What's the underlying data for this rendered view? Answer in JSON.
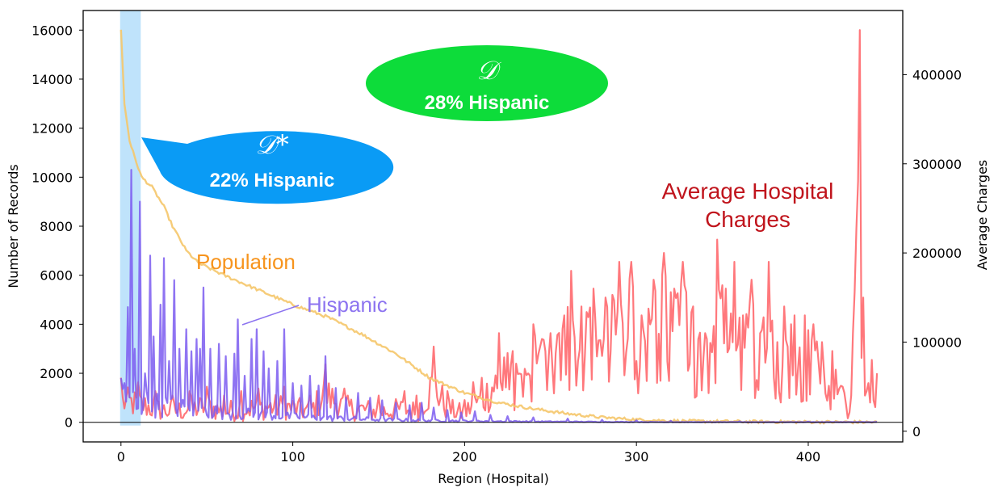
{
  "chart_data": {
    "type": "line",
    "xlabel": "Region (Hospital)",
    "ylabel": "Number of Records",
    "y2label": "Average Charges",
    "xlim": [
      -22,
      455
    ],
    "ylim": [
      -800,
      16800
    ],
    "y2lim": [
      -12000,
      472000
    ],
    "xticks": [
      "0",
      "100",
      "200",
      "300",
      "400"
    ],
    "yticks": [
      "0",
      "2000",
      "4000",
      "6000",
      "8000",
      "10000",
      "12000",
      "14000",
      "16000"
    ],
    "y2ticks": [
      "0",
      "100000",
      "200000",
      "300000",
      "400000"
    ],
    "n_regions": 440,
    "highlight_span": [
      -0.5,
      11.5
    ],
    "colors": {
      "population": "#f5c66a",
      "hispanic": "#7b5cf0",
      "charges": "#ff5a5f",
      "highlight": "#bfe3fb",
      "bubble_small": "#0a9bf5",
      "bubble_large": "#0ddc3a",
      "population_label": "#f7941d",
      "hispanic_label": "#8c73f0",
      "charges_label": "#c0141c"
    },
    "series": [
      {
        "name": "Population",
        "axis": "left",
        "points": [
          [
            0,
            16000
          ],
          [
            2,
            13000
          ],
          [
            5,
            11500
          ],
          [
            8,
            10800
          ],
          [
            12,
            10000
          ],
          [
            18,
            9600
          ],
          [
            25,
            8800
          ],
          [
            30,
            8000
          ],
          [
            38,
            7000
          ],
          [
            45,
            6500
          ],
          [
            60,
            6000
          ],
          [
            80,
            5400
          ],
          [
            100,
            4800
          ],
          [
            120,
            4300
          ],
          [
            140,
            3600
          ],
          [
            160,
            2800
          ],
          [
            180,
            1800
          ],
          [
            200,
            1200
          ],
          [
            220,
            800
          ],
          [
            240,
            550
          ],
          [
            260,
            350
          ],
          [
            280,
            200
          ],
          [
            300,
            110
          ],
          [
            320,
            60
          ],
          [
            340,
            40
          ],
          [
            380,
            20
          ],
          [
            420,
            10
          ],
          [
            440,
            5
          ]
        ]
      },
      {
        "name": "Hispanic",
        "axis": "left",
        "peaks": [
          [
            0,
            1800
          ],
          [
            2,
            1600
          ],
          [
            4,
            4700
          ],
          [
            6,
            10300
          ],
          [
            8,
            3000
          ],
          [
            11,
            9000
          ],
          [
            14,
            2000
          ],
          [
            17,
            6800
          ],
          [
            19,
            3500
          ],
          [
            23,
            4800
          ],
          [
            25,
            6700
          ],
          [
            28,
            2500
          ],
          [
            31,
            5800
          ],
          [
            34,
            3000
          ],
          [
            38,
            3800
          ],
          [
            41,
            2900
          ],
          [
            44,
            3400
          ],
          [
            46,
            3000
          ],
          [
            48,
            5500
          ],
          [
            52,
            3000
          ],
          [
            57,
            3200
          ],
          [
            61,
            2700
          ],
          [
            66,
            2800
          ],
          [
            68,
            4200
          ],
          [
            72,
            1900
          ],
          [
            76,
            3400
          ],
          [
            79,
            3800
          ],
          [
            83,
            2900
          ],
          [
            86,
            2200
          ],
          [
            91,
            2500
          ],
          [
            95,
            3800
          ],
          [
            100,
            1600
          ],
          [
            105,
            1500
          ],
          [
            110,
            1900
          ],
          [
            115,
            1500
          ],
          [
            119,
            2700
          ],
          [
            125,
            1400
          ],
          [
            131,
            1000
          ],
          [
            138,
            1200
          ],
          [
            145,
            1000
          ],
          [
            152,
            900
          ],
          [
            160,
            800
          ],
          [
            168,
            700
          ],
          [
            175,
            800
          ],
          [
            182,
            600
          ],
          [
            190,
            500
          ],
          [
            198,
            400
          ],
          [
            206,
            450
          ],
          [
            215,
            300
          ],
          [
            225,
            250
          ],
          [
            240,
            200
          ],
          [
            260,
            150
          ],
          [
            280,
            100
          ],
          [
            300,
            80
          ],
          [
            320,
            60
          ],
          [
            360,
            40
          ],
          [
            400,
            30
          ],
          [
            440,
            20
          ]
        ],
        "baseline_decay": 1200
      },
      {
        "name": "Average Hospital Charges",
        "axis": "right",
        "peaks": [
          [
            0,
            60000
          ],
          [
            10,
            55000
          ],
          [
            20,
            45000
          ],
          [
            30,
            40000
          ],
          [
            40,
            45000
          ],
          [
            50,
            50000
          ],
          [
            60,
            40000
          ],
          [
            70,
            45000
          ],
          [
            80,
            48000
          ],
          [
            95,
            50000
          ],
          [
            110,
            40000
          ],
          [
            119,
            75000
          ],
          [
            130,
            48000
          ],
          [
            150,
            40000
          ],
          [
            165,
            45000
          ],
          [
            172,
            40000
          ],
          [
            182,
            95000
          ],
          [
            190,
            45000
          ],
          [
            200,
            35000
          ],
          [
            205,
            55000
          ],
          [
            210,
            60000
          ],
          [
            220,
            110000
          ],
          [
            228,
            90000
          ],
          [
            235,
            70000
          ],
          [
            240,
            120000
          ],
          [
            250,
            110000
          ],
          [
            258,
            130000
          ],
          [
            262,
            180000
          ],
          [
            268,
            140000
          ],
          [
            275,
            160000
          ],
          [
            282,
            150000
          ],
          [
            290,
            190000
          ],
          [
            297,
            190000
          ],
          [
            303,
            130000
          ],
          [
            310,
            170000
          ],
          [
            316,
            200000
          ],
          [
            322,
            160000
          ],
          [
            327,
            190000
          ],
          [
            333,
            140000
          ],
          [
            340,
            110000
          ],
          [
            347,
            215000
          ],
          [
            352,
            160000
          ],
          [
            357,
            190000
          ],
          [
            362,
            130000
          ],
          [
            367,
            170000
          ],
          [
            372,
            110000
          ],
          [
            377,
            190000
          ],
          [
            382,
            100000
          ],
          [
            386,
            140000
          ],
          [
            392,
            130000
          ],
          [
            398,
            130000
          ],
          [
            403,
            120000
          ],
          [
            408,
            100000
          ],
          [
            414,
            90000
          ],
          [
            420,
            50000
          ],
          [
            425,
            40000
          ],
          [
            430,
            450000
          ],
          [
            433,
            40000
          ],
          [
            437,
            80000
          ],
          [
            440,
            65000
          ]
        ]
      }
    ],
    "annotations": {
      "population_label": "Population",
      "hispanic_label": "Hispanic",
      "charges_label_line1": "Average Hospital",
      "charges_label_line2": "Charges",
      "bubble_small_symbol": "𝒟*",
      "bubble_small_text": "22% Hispanic",
      "bubble_large_symbol": "𝒟",
      "bubble_large_text": "28% Hispanic"
    }
  }
}
